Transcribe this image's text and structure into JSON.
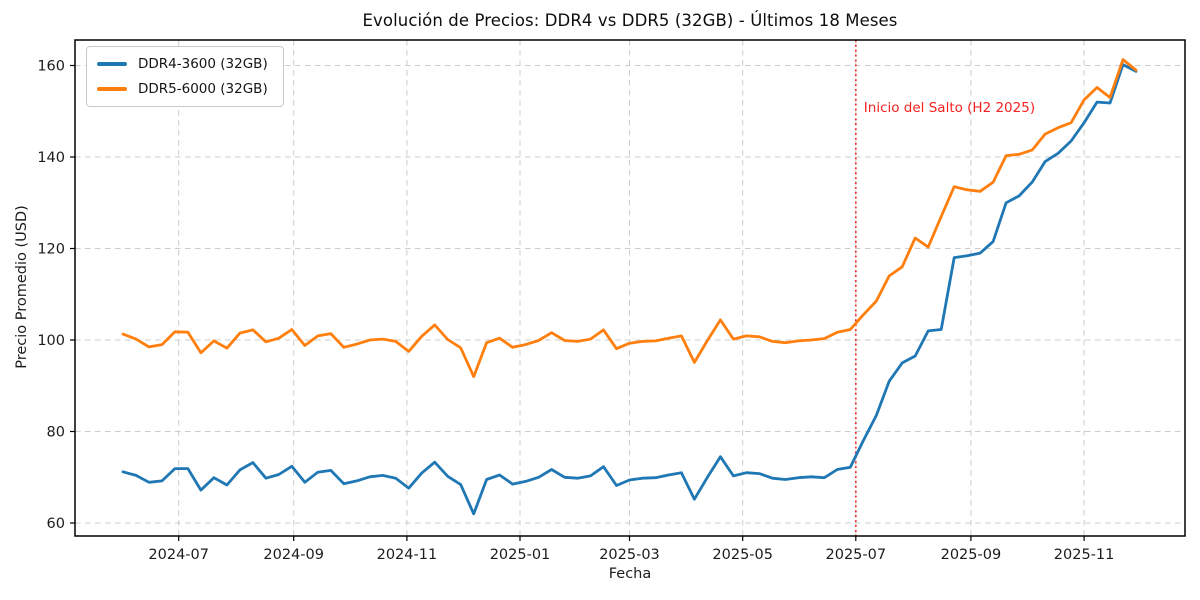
{
  "chart_data": {
    "type": "line",
    "title": "Evolución de Precios: DDR4 vs DDR5 (32GB) - Últimos 18 Meses",
    "xlabel": "Fecha",
    "ylabel": "Precio Promedio (USD)",
    "grid": "dashed",
    "legend_position": "upper-left",
    "ylim": [
      57,
      166
    ],
    "y_ticks": [
      60,
      80,
      100,
      120,
      140,
      160
    ],
    "x_ticks": [
      {
        "label": "2024-07",
        "date": "2024-07-01"
      },
      {
        "label": "2024-09",
        "date": "2024-09-01"
      },
      {
        "label": "2024-11",
        "date": "2024-11-01"
      },
      {
        "label": "2025-01",
        "date": "2025-01-01"
      },
      {
        "label": "2025-03",
        "date": "2025-03-01"
      },
      {
        "label": "2025-05",
        "date": "2025-05-01"
      },
      {
        "label": "2025-07",
        "date": "2025-07-01"
      },
      {
        "label": "2025-09",
        "date": "2025-09-01"
      },
      {
        "label": "2025-11",
        "date": "2025-11-01"
      }
    ],
    "x": [
      "2024-06-01",
      "2024-06-08",
      "2024-06-15",
      "2024-06-22",
      "2024-06-29",
      "2024-07-06",
      "2024-07-13",
      "2024-07-20",
      "2024-07-27",
      "2024-08-03",
      "2024-08-10",
      "2024-08-17",
      "2024-08-24",
      "2024-08-31",
      "2024-09-07",
      "2024-09-14",
      "2024-09-21",
      "2024-09-28",
      "2024-10-05",
      "2024-10-12",
      "2024-10-19",
      "2024-10-26",
      "2024-11-02",
      "2024-11-09",
      "2024-11-16",
      "2024-11-23",
      "2024-11-30",
      "2024-12-07",
      "2024-12-14",
      "2024-12-21",
      "2024-12-28",
      "2025-01-04",
      "2025-01-11",
      "2025-01-18",
      "2025-01-25",
      "2025-02-01",
      "2025-02-08",
      "2025-02-15",
      "2025-02-22",
      "2025-03-01",
      "2025-03-08",
      "2025-03-15",
      "2025-03-22",
      "2025-03-29",
      "2025-04-05",
      "2025-04-12",
      "2025-04-19",
      "2025-04-26",
      "2025-05-03",
      "2025-05-10",
      "2025-05-17",
      "2025-05-24",
      "2025-05-31",
      "2025-06-07",
      "2025-06-14",
      "2025-06-21",
      "2025-06-28",
      "2025-07-05",
      "2025-07-12",
      "2025-07-19",
      "2025-07-26",
      "2025-08-02",
      "2025-08-09",
      "2025-08-16",
      "2025-08-23",
      "2025-08-30",
      "2025-09-06",
      "2025-09-13",
      "2025-09-20",
      "2025-09-27",
      "2025-10-04",
      "2025-10-11",
      "2025-10-18",
      "2025-10-25",
      "2025-11-01",
      "2025-11-08",
      "2025-11-15",
      "2025-11-22",
      "2025-11-29"
    ],
    "series": [
      {
        "name": "DDR4-3600 (32GB)",
        "color": "#1f77b4",
        "values": [
          71.2,
          70.4,
          68.9,
          69.2,
          71.9,
          71.9,
          67.2,
          69.9,
          68.3,
          71.6,
          73.2,
          69.8,
          70.6,
          72.4,
          68.9,
          71.1,
          71.5,
          68.6,
          69.2,
          70.1,
          70.4,
          69.8,
          67.6,
          70.9,
          73.3,
          70.2,
          68.4,
          62.0,
          69.5,
          70.5,
          68.5,
          69.1,
          70.0,
          71.7,
          70.0,
          69.8,
          70.3,
          72.3,
          68.2,
          69.4,
          69.8,
          69.9,
          70.5,
          71.0,
          65.2,
          70.0,
          74.5,
          70.3,
          71.0,
          70.8,
          69.8,
          69.5,
          69.9,
          70.1,
          69.9,
          71.7,
          72.2,
          78.0,
          83.5,
          91.0,
          95.0,
          96.5,
          102.0,
          102.3,
          118.0,
          118.4,
          119.0,
          121.5,
          130.0,
          131.5,
          134.5,
          139.0,
          140.8,
          143.5,
          147.5,
          152.0,
          151.8,
          160.2,
          158.7
        ]
      },
      {
        "name": "DDR5-6000 (32GB)",
        "color": "#ff7f0e",
        "values": [
          101.3,
          100.2,
          98.5,
          99.0,
          101.8,
          101.7,
          97.2,
          99.8,
          98.2,
          101.5,
          102.2,
          99.6,
          100.4,
          102.3,
          98.8,
          100.9,
          101.4,
          98.4,
          99.1,
          100.0,
          100.2,
          99.7,
          97.5,
          100.8,
          103.3,
          100.1,
          98.3,
          92.0,
          99.4,
          100.4,
          98.4,
          99.0,
          99.9,
          101.6,
          99.9,
          99.7,
          100.2,
          102.2,
          98.1,
          99.3,
          99.7,
          99.8,
          100.4,
          100.9,
          95.1,
          99.9,
          104.4,
          100.2,
          100.9,
          100.7,
          99.7,
          99.4,
          99.8,
          100.0,
          100.3,
          101.7,
          102.3,
          105.5,
          108.5,
          114.0,
          116.0,
          122.3,
          120.3,
          127.0,
          133.5,
          132.8,
          132.5,
          134.5,
          140.3,
          140.6,
          141.5,
          145.0,
          146.4,
          147.5,
          152.5,
          155.2,
          153.0,
          161.3,
          159.0
        ]
      }
    ],
    "annotation": {
      "text": "Inicio del Salto (H2 2025)",
      "date": "2025-07-01",
      "color": "#f52222",
      "style": "dotted-vertical-line"
    }
  }
}
